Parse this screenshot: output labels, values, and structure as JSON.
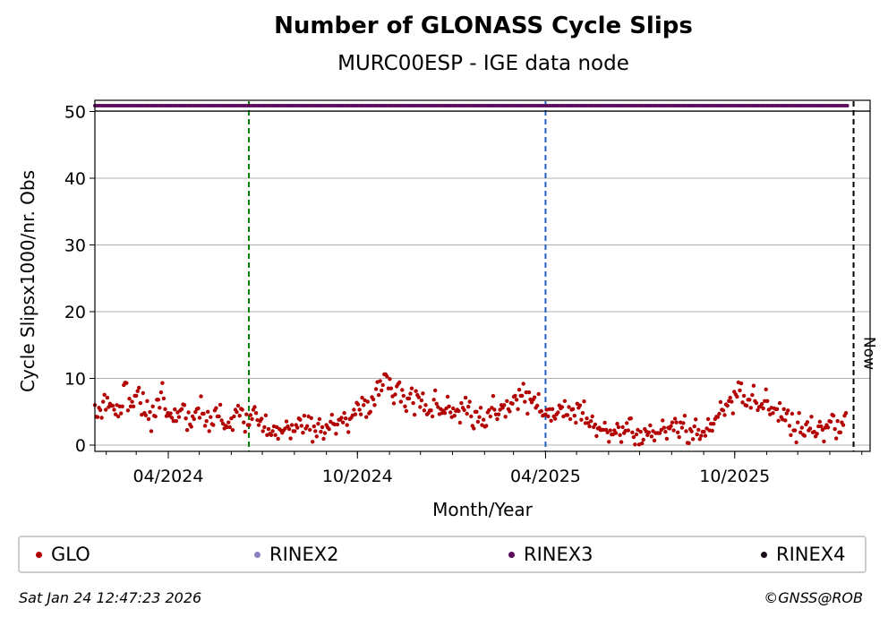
{
  "chart_data": {
    "type": "scatter",
    "title": "Number of GLONASS Cycle Slips",
    "subtitle": "MURC00ESP - IGE data node",
    "xlabel": "Month/Year",
    "ylabel": "Cycle Slipsx1000/nr. Obs",
    "x_range": [
      "2024-01-21",
      "2026-02-09"
    ],
    "ylim": [
      -1,
      52
    ],
    "yticks": [
      0,
      10,
      20,
      30,
      40,
      50
    ],
    "xticks": [
      {
        "date": "2024-04-01",
        "label": "04/2024"
      },
      {
        "date": "2024-10-01",
        "label": "10/2024"
      },
      {
        "date": "2025-04-01",
        "label": "04/2025"
      },
      {
        "date": "2025-10-01",
        "label": "10/2025"
      }
    ],
    "grid": true,
    "vertical_lines": [
      {
        "date": "2024-06-18",
        "color": "#008000",
        "style": "dashed"
      },
      {
        "date": "2025-04-01",
        "color": "#1f5fbf",
        "style": "dashed"
      },
      {
        "date": "2026-01-24",
        "color": "#000000",
        "style": "dashed",
        "label": "Now"
      }
    ],
    "rinex3_band": {
      "value": 51,
      "from": "2024-01-21",
      "to": "2026-01-19"
    },
    "series": [
      {
        "name": "GLO",
        "color": "#b30000",
        "date_start": "2024-01-21",
        "step_days": 4,
        "values": [
          6.0,
          5.6,
          6.5,
          7.1,
          5.9,
          4.6,
          5.8,
          9.0,
          5.2,
          6.5,
          7.4,
          6.3,
          4.8,
          3.9,
          5.8,
          6.8,
          7.9,
          5.4,
          4.4,
          3.6,
          4.9,
          5.4,
          4.0,
          3.1,
          3.9,
          5.5,
          4.7,
          3.6,
          4.2,
          5.2,
          4.3,
          3.2,
          2.7,
          4.0,
          5.3,
          4.4,
          3.4,
          3.0,
          3.9,
          4.8,
          3.6,
          2.7,
          2.4,
          2.1,
          2.7,
          2.2,
          2.5,
          2.4,
          2.1,
          2.6,
          2.9,
          2.5,
          2.3,
          2.8,
          3.2,
          2.7,
          3.0,
          3.5,
          3.1,
          3.8,
          3.4,
          3.0,
          4.1,
          4.6,
          5.3,
          6.0,
          6.5,
          7.2,
          8.4,
          9.6,
          10.6,
          8.5,
          7.3,
          8.8,
          6.5,
          5.8,
          7.0,
          6.3,
          7.5,
          6.7,
          6.0,
          5.2,
          6.8,
          5.7,
          4.8,
          5.5,
          4.9,
          4.4,
          5.1,
          5.6,
          4.7,
          4.3,
          5.0,
          4.2,
          3.8,
          4.9,
          5.6,
          4.6,
          5.3,
          6.0,
          5.4,
          6.2,
          6.8,
          7.4,
          6.5,
          7.9,
          6.8,
          5.9,
          5.1,
          4.6,
          5.4,
          4.3,
          4.9,
          5.7,
          4.5,
          3.9,
          4.4,
          5.6,
          4.8,
          4.0,
          3.6,
          3.1,
          2.6,
          2.3,
          1.9,
          1.6,
          1.8,
          1.5,
          1.8,
          2.2,
          1.9,
          1.6,
          2.0,
          2.4,
          1.9,
          2.1,
          1.8,
          2.3,
          2.0,
          2.5,
          2.2,
          1.9,
          2.6,
          2.1,
          2.4,
          2.8,
          2.3,
          2.0,
          2.5,
          3.2,
          3.9,
          4.7,
          5.2,
          5.9,
          6.5,
          7.6,
          8.2,
          7.4,
          6.8,
          7.5,
          6.3,
          5.8,
          6.6,
          5.3,
          4.8,
          5.4,
          4.2,
          3.7,
          2.9,
          2.2,
          3.4,
          2.6,
          3.1,
          2.5,
          2.0,
          2.8,
          2.3,
          3.0,
          3.5,
          2.4,
          1.9,
          3.0
        ]
      },
      {
        "name": "RINEX2",
        "color": "#8c7fbf",
        "values": []
      },
      {
        "name": "RINEX3",
        "color": "#5c0a5c",
        "values": [
          51
        ]
      },
      {
        "name": "RINEX4",
        "color": "#1a0a1a",
        "values": []
      }
    ]
  },
  "legend": {
    "items": [
      {
        "label": "GLO",
        "color": "#b30000"
      },
      {
        "label": "RINEX2",
        "color": "#8c7fbf"
      },
      {
        "label": "RINEX3",
        "color": "#5c0a5c"
      },
      {
        "label": "RINEX4",
        "color": "#1a0a1a"
      }
    ]
  },
  "footer": {
    "timestamp": "Sat Jan 24 12:47:23 2026",
    "copyright": "©GNSS@ROB"
  }
}
